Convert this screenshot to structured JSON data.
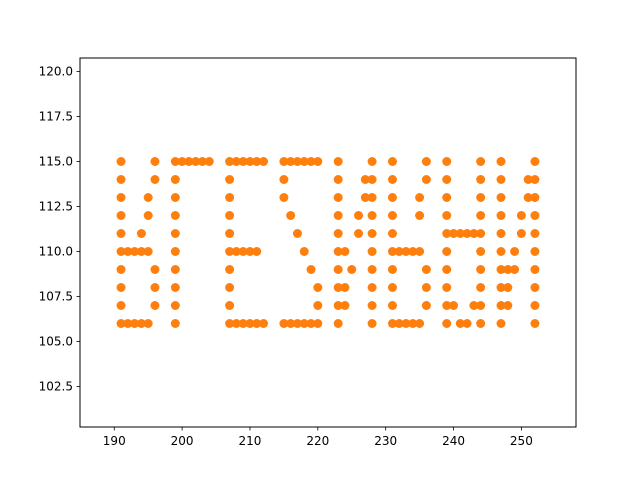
{
  "chart_data": {
    "type": "scatter",
    "title": "",
    "xlabel": "",
    "ylabel": "",
    "xlim": [
      184.95,
      258.05
    ],
    "ylim": [
      100.25,
      120.75
    ],
    "xticks": [
      190,
      200,
      210,
      220,
      230,
      240,
      250
    ],
    "yticks": [
      102.5,
      105.0,
      107.5,
      110.0,
      112.5,
      115.0,
      117.5,
      120.0
    ],
    "xtick_labels": [
      "190",
      "200",
      "210",
      "220",
      "230",
      "240",
      "250"
    ],
    "ytick_labels": [
      "102.5",
      "105.0",
      "107.5",
      "110.0",
      "112.5",
      "115.0",
      "117.5",
      "120.0"
    ],
    "grid": false,
    "legend": "none",
    "marker_color": "#ff7f0e",
    "series": [
      {
        "color": "#ff7f0e",
        "points": [
          [
            191,
            115
          ],
          [
            191,
            114
          ],
          [
            191,
            113
          ],
          [
            191,
            112
          ],
          [
            191,
            111
          ],
          [
            191,
            110
          ],
          [
            191,
            109
          ],
          [
            191,
            108
          ],
          [
            191,
            107
          ],
          [
            191,
            106
          ],
          [
            192,
            110
          ],
          [
            193,
            110
          ],
          [
            194,
            110
          ],
          [
            195,
            110
          ],
          [
            194,
            111
          ],
          [
            195,
            112
          ],
          [
            195,
            113
          ],
          [
            196,
            114
          ],
          [
            196,
            115
          ],
          [
            196,
            109
          ],
          [
            196,
            108
          ],
          [
            196,
            107
          ],
          [
            195,
            106
          ],
          [
            194,
            106
          ],
          [
            193,
            106
          ],
          [
            192,
            106
          ],
          [
            199,
            115
          ],
          [
            199,
            114
          ],
          [
            199,
            113
          ],
          [
            199,
            112
          ],
          [
            199,
            111
          ],
          [
            199,
            110
          ],
          [
            199,
            109
          ],
          [
            199,
            108
          ],
          [
            199,
            107
          ],
          [
            199,
            106
          ],
          [
            200,
            115
          ],
          [
            201,
            115
          ],
          [
            202,
            115
          ],
          [
            203,
            115
          ],
          [
            204,
            115
          ],
          [
            207,
            115
          ],
          [
            207,
            114
          ],
          [
            207,
            113
          ],
          [
            207,
            112
          ],
          [
            207,
            111
          ],
          [
            207,
            110
          ],
          [
            207,
            109
          ],
          [
            207,
            108
          ],
          [
            207,
            107
          ],
          [
            207,
            106
          ],
          [
            208,
            115
          ],
          [
            209,
            115
          ],
          [
            210,
            115
          ],
          [
            211,
            115
          ],
          [
            212,
            115
          ],
          [
            208,
            110
          ],
          [
            209,
            110
          ],
          [
            210,
            110
          ],
          [
            211,
            110
          ],
          [
            208,
            106
          ],
          [
            209,
            106
          ],
          [
            210,
            106
          ],
          [
            211,
            106
          ],
          [
            212,
            106
          ],
          [
            215,
            115
          ],
          [
            216,
            115
          ],
          [
            217,
            115
          ],
          [
            218,
            115
          ],
          [
            219,
            115
          ],
          [
            220,
            115
          ],
          [
            215,
            114
          ],
          [
            215,
            113
          ],
          [
            216,
            112
          ],
          [
            217,
            111
          ],
          [
            218,
            110
          ],
          [
            219,
            109
          ],
          [
            220,
            108
          ],
          [
            220,
            107
          ],
          [
            215,
            106
          ],
          [
            216,
            106
          ],
          [
            217,
            106
          ],
          [
            218,
            106
          ],
          [
            219,
            106
          ],
          [
            220,
            106
          ],
          [
            223,
            115
          ],
          [
            223,
            114
          ],
          [
            223,
            113
          ],
          [
            223,
            112
          ],
          [
            223,
            111
          ],
          [
            223,
            110
          ],
          [
            223,
            109
          ],
          [
            223,
            108
          ],
          [
            223,
            107
          ],
          [
            223,
            106
          ],
          [
            224,
            110
          ],
          [
            224,
            108
          ],
          [
            224,
            107
          ],
          [
            225,
            109
          ],
          [
            226,
            112
          ],
          [
            226,
            111
          ],
          [
            227,
            114
          ],
          [
            227,
            113
          ],
          [
            228,
            115
          ],
          [
            228,
            114
          ],
          [
            228,
            113
          ],
          [
            228,
            112
          ],
          [
            228,
            111
          ],
          [
            228,
            110
          ],
          [
            228,
            109
          ],
          [
            228,
            108
          ],
          [
            228,
            107
          ],
          [
            228,
            106
          ],
          [
            231,
            115
          ],
          [
            231,
            114
          ],
          [
            231,
            113
          ],
          [
            231,
            112
          ],
          [
            231,
            111
          ],
          [
            231,
            110
          ],
          [
            231,
            109
          ],
          [
            231,
            108
          ],
          [
            231,
            107
          ],
          [
            231,
            106
          ],
          [
            232,
            110
          ],
          [
            233,
            110
          ],
          [
            234,
            110
          ],
          [
            235,
            110
          ],
          [
            232,
            106
          ],
          [
            233,
            106
          ],
          [
            234,
            106
          ],
          [
            235,
            106
          ],
          [
            235,
            113
          ],
          [
            235,
            112
          ],
          [
            236,
            115
          ],
          [
            236,
            114
          ],
          [
            236,
            109
          ],
          [
            236,
            108
          ],
          [
            236,
            107
          ],
          [
            239,
            115
          ],
          [
            239,
            114
          ],
          [
            239,
            113
          ],
          [
            239,
            112
          ],
          [
            239,
            111
          ],
          [
            239,
            110
          ],
          [
            239,
            109
          ],
          [
            239,
            108
          ],
          [
            239,
            107
          ],
          [
            239,
            106
          ],
          [
            240,
            111
          ],
          [
            241,
            111
          ],
          [
            242,
            111
          ],
          [
            243,
            111
          ],
          [
            240,
            107
          ],
          [
            241,
            106
          ],
          [
            242,
            106
          ],
          [
            243,
            107
          ],
          [
            244,
            115
          ],
          [
            244,
            114
          ],
          [
            244,
            113
          ],
          [
            244,
            112
          ],
          [
            244,
            111
          ],
          [
            244,
            110
          ],
          [
            244,
            109
          ],
          [
            244,
            108
          ],
          [
            244,
            107
          ],
          [
            244,
            106
          ],
          [
            247,
            115
          ],
          [
            247,
            114
          ],
          [
            247,
            113
          ],
          [
            247,
            112
          ],
          [
            247,
            111
          ],
          [
            247,
            110
          ],
          [
            247,
            109
          ],
          [
            247,
            108
          ],
          [
            247,
            107
          ],
          [
            247,
            106
          ],
          [
            248,
            109
          ],
          [
            248,
            108
          ],
          [
            248,
            107
          ],
          [
            249,
            110
          ],
          [
            249,
            109
          ],
          [
            250,
            112
          ],
          [
            250,
            111
          ],
          [
            251,
            114
          ],
          [
            251,
            113
          ],
          [
            252,
            115
          ],
          [
            252,
            114
          ],
          [
            252,
            113
          ],
          [
            252,
            112
          ],
          [
            252,
            111
          ],
          [
            252,
            110
          ],
          [
            252,
            109
          ],
          [
            252,
            108
          ],
          [
            252,
            107
          ],
          [
            252,
            106
          ]
        ]
      }
    ]
  }
}
